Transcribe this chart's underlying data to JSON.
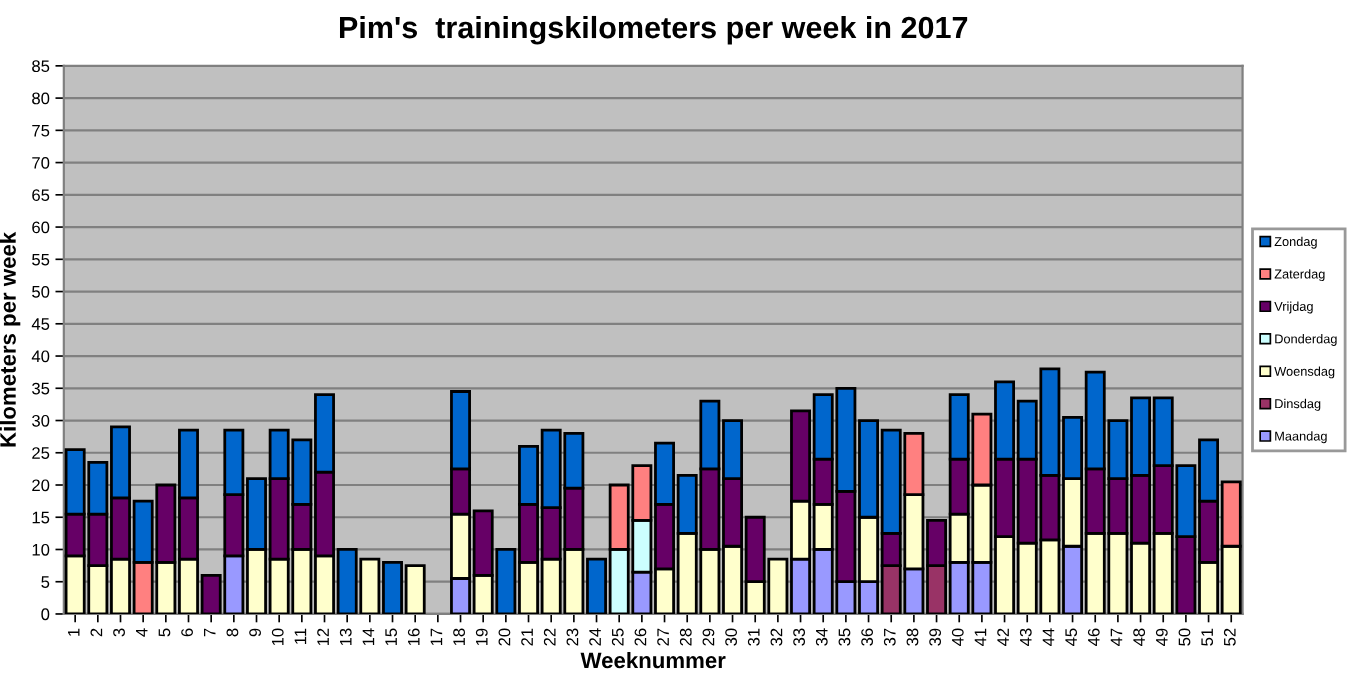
{
  "chart_data": {
    "type": "bar",
    "title": "Pim's  trainingskilometers per week in 2017",
    "xlabel": "Weeknummer",
    "ylabel": "Kilometers per week",
    "categories": [
      "1",
      "2",
      "3",
      "4",
      "5",
      "6",
      "7",
      "8",
      "9",
      "10",
      "11",
      "12",
      "13",
      "14",
      "15",
      "16",
      "17",
      "18",
      "19",
      "20",
      "21",
      "22",
      "23",
      "24",
      "25",
      "26",
      "27",
      "28",
      "29",
      "30",
      "31",
      "32",
      "33",
      "34",
      "35",
      "36",
      "37",
      "38",
      "39",
      "40",
      "41",
      "42",
      "43",
      "44",
      "45",
      "46",
      "47",
      "48",
      "49",
      "50",
      "51",
      "52"
    ],
    "stacked": true,
    "series": [
      {
        "name": "Maandag",
        "color": "#9999ff",
        "values": [
          null,
          null,
          null,
          null,
          null,
          null,
          null,
          9,
          null,
          null,
          null,
          null,
          null,
          null,
          null,
          null,
          null,
          5.5,
          null,
          null,
          null,
          null,
          null,
          null,
          null,
          6.5,
          null,
          null,
          null,
          null,
          null,
          null,
          8.5,
          10,
          5,
          5,
          null,
          7,
          null,
          8,
          8,
          null,
          null,
          null,
          10.5,
          null,
          null,
          null,
          null,
          null,
          null,
          null
        ]
      },
      {
        "name": "Dinsdag",
        "color": "#993366",
        "values": [
          null,
          null,
          null,
          null,
          null,
          null,
          null,
          null,
          null,
          null,
          null,
          null,
          null,
          null,
          null,
          null,
          null,
          null,
          null,
          null,
          null,
          null,
          null,
          null,
          null,
          null,
          null,
          null,
          null,
          null,
          null,
          null,
          null,
          null,
          null,
          null,
          7.5,
          null,
          7.5,
          null,
          null,
          null,
          null,
          null,
          null,
          null,
          null,
          null,
          null,
          null,
          null,
          null
        ]
      },
      {
        "name": "Woensdag",
        "color": "#ffffcc",
        "values": [
          9,
          7.5,
          8.5,
          null,
          8,
          8.5,
          null,
          null,
          10,
          8.5,
          10,
          9,
          null,
          8.5,
          null,
          7.5,
          null,
          10,
          6,
          null,
          8,
          8.5,
          10,
          null,
          null,
          null,
          7,
          12.5,
          10,
          10.5,
          5,
          8.5,
          9,
          7,
          null,
          10,
          null,
          11.5,
          null,
          7.5,
          12,
          12,
          11,
          11.5,
          10.5,
          12.5,
          12.5,
          11,
          12.5,
          null,
          8,
          10.5
        ]
      },
      {
        "name": "Donderdag",
        "color": "#ccffff",
        "values": [
          null,
          null,
          null,
          null,
          null,
          null,
          null,
          null,
          null,
          null,
          null,
          null,
          null,
          null,
          null,
          null,
          null,
          null,
          null,
          null,
          null,
          null,
          null,
          null,
          10,
          8,
          null,
          null,
          null,
          null,
          null,
          null,
          null,
          null,
          null,
          null,
          null,
          null,
          null,
          null,
          null,
          null,
          null,
          null,
          null,
          null,
          null,
          null,
          null,
          null,
          null,
          null
        ]
      },
      {
        "name": "Vrijdag",
        "color": "#660066",
        "values": [
          6.5,
          8,
          9.5,
          null,
          12,
          9.5,
          6,
          9.5,
          null,
          12.5,
          7,
          13,
          null,
          null,
          null,
          null,
          null,
          7,
          10,
          null,
          9,
          8,
          9.5,
          null,
          null,
          null,
          10,
          null,
          12.5,
          10.5,
          10,
          null,
          14,
          7,
          14,
          null,
          5,
          null,
          7,
          8.5,
          null,
          12,
          13,
          10,
          null,
          10,
          8.5,
          10.5,
          10.5,
          12,
          9.5,
          null
        ]
      },
      {
        "name": "Zaterdag",
        "color": "#ff8080",
        "values": [
          null,
          null,
          null,
          8,
          null,
          null,
          null,
          null,
          null,
          null,
          null,
          null,
          null,
          null,
          null,
          null,
          null,
          null,
          null,
          null,
          null,
          null,
          null,
          null,
          10,
          8.5,
          null,
          null,
          null,
          null,
          null,
          null,
          null,
          null,
          null,
          null,
          null,
          9.5,
          null,
          null,
          11,
          null,
          null,
          null,
          null,
          null,
          null,
          null,
          null,
          null,
          null,
          10
        ]
      },
      {
        "name": "Zondag",
        "color": "#0066cc",
        "values": [
          10,
          8,
          11,
          9.5,
          null,
          10.5,
          null,
          10,
          11,
          7.5,
          10,
          12,
          10,
          null,
          8,
          null,
          null,
          12,
          null,
          10,
          9,
          12,
          8.5,
          8.5,
          null,
          null,
          9.5,
          9,
          10.5,
          9,
          null,
          null,
          null,
          10,
          16,
          15,
          16,
          null,
          null,
          10,
          null,
          12,
          9,
          16.5,
          9.5,
          15,
          9,
          12,
          10.5,
          11,
          9.5,
          null
        ]
      }
    ],
    "ylim": [
      0,
      85
    ],
    "yticks": [
      0,
      5,
      10,
      15,
      20,
      25,
      30,
      35,
      40,
      45,
      50,
      55,
      60,
      65,
      70,
      75,
      80,
      85
    ],
    "grid": "y",
    "legend": "right"
  }
}
